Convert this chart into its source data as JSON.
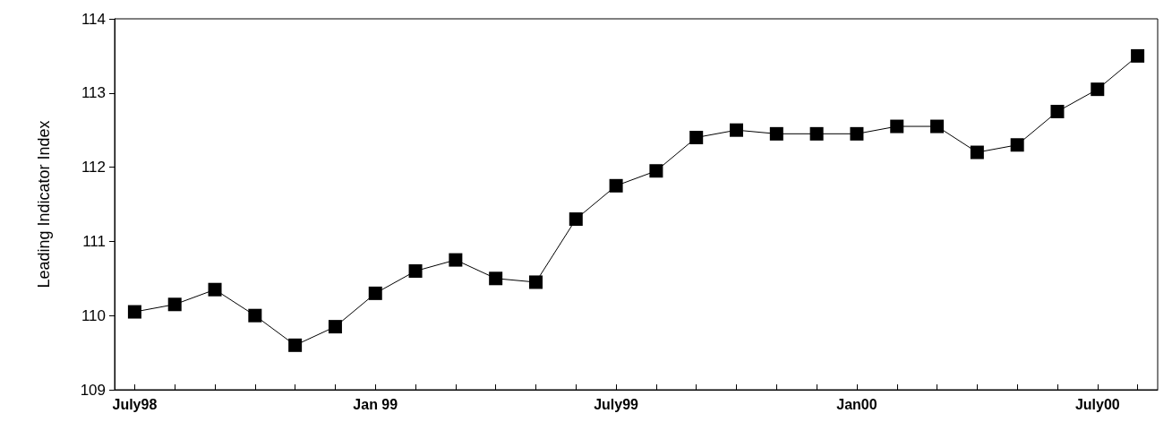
{
  "chart_data": {
    "type": "line",
    "ylabel": "Leading Indicator Index",
    "categories": [
      "July98",
      null,
      null,
      null,
      null,
      null,
      "Jan 99",
      null,
      null,
      null,
      null,
      null,
      "July99",
      null,
      null,
      null,
      null,
      null,
      "Jan00",
      null,
      null,
      null,
      null,
      null,
      "July00",
      null
    ],
    "series": [
      {
        "color": "#000000",
        "values": [
          110.05,
          110.15,
          110.35,
          110.0,
          109.6,
          109.85,
          110.3,
          110.6,
          110.75,
          110.5,
          110.45,
          111.3,
          111.75,
          111.95,
          112.4,
          112.5,
          112.45,
          112.45,
          112.45,
          112.55,
          112.55,
          112.2,
          112.3,
          112.75,
          113.05,
          113.5
        ]
      }
    ],
    "ylim": [
      109,
      114
    ],
    "yticks": [
      109,
      110,
      111,
      112,
      113,
      114
    ],
    "marker": "square",
    "line_style": "solid"
  }
}
